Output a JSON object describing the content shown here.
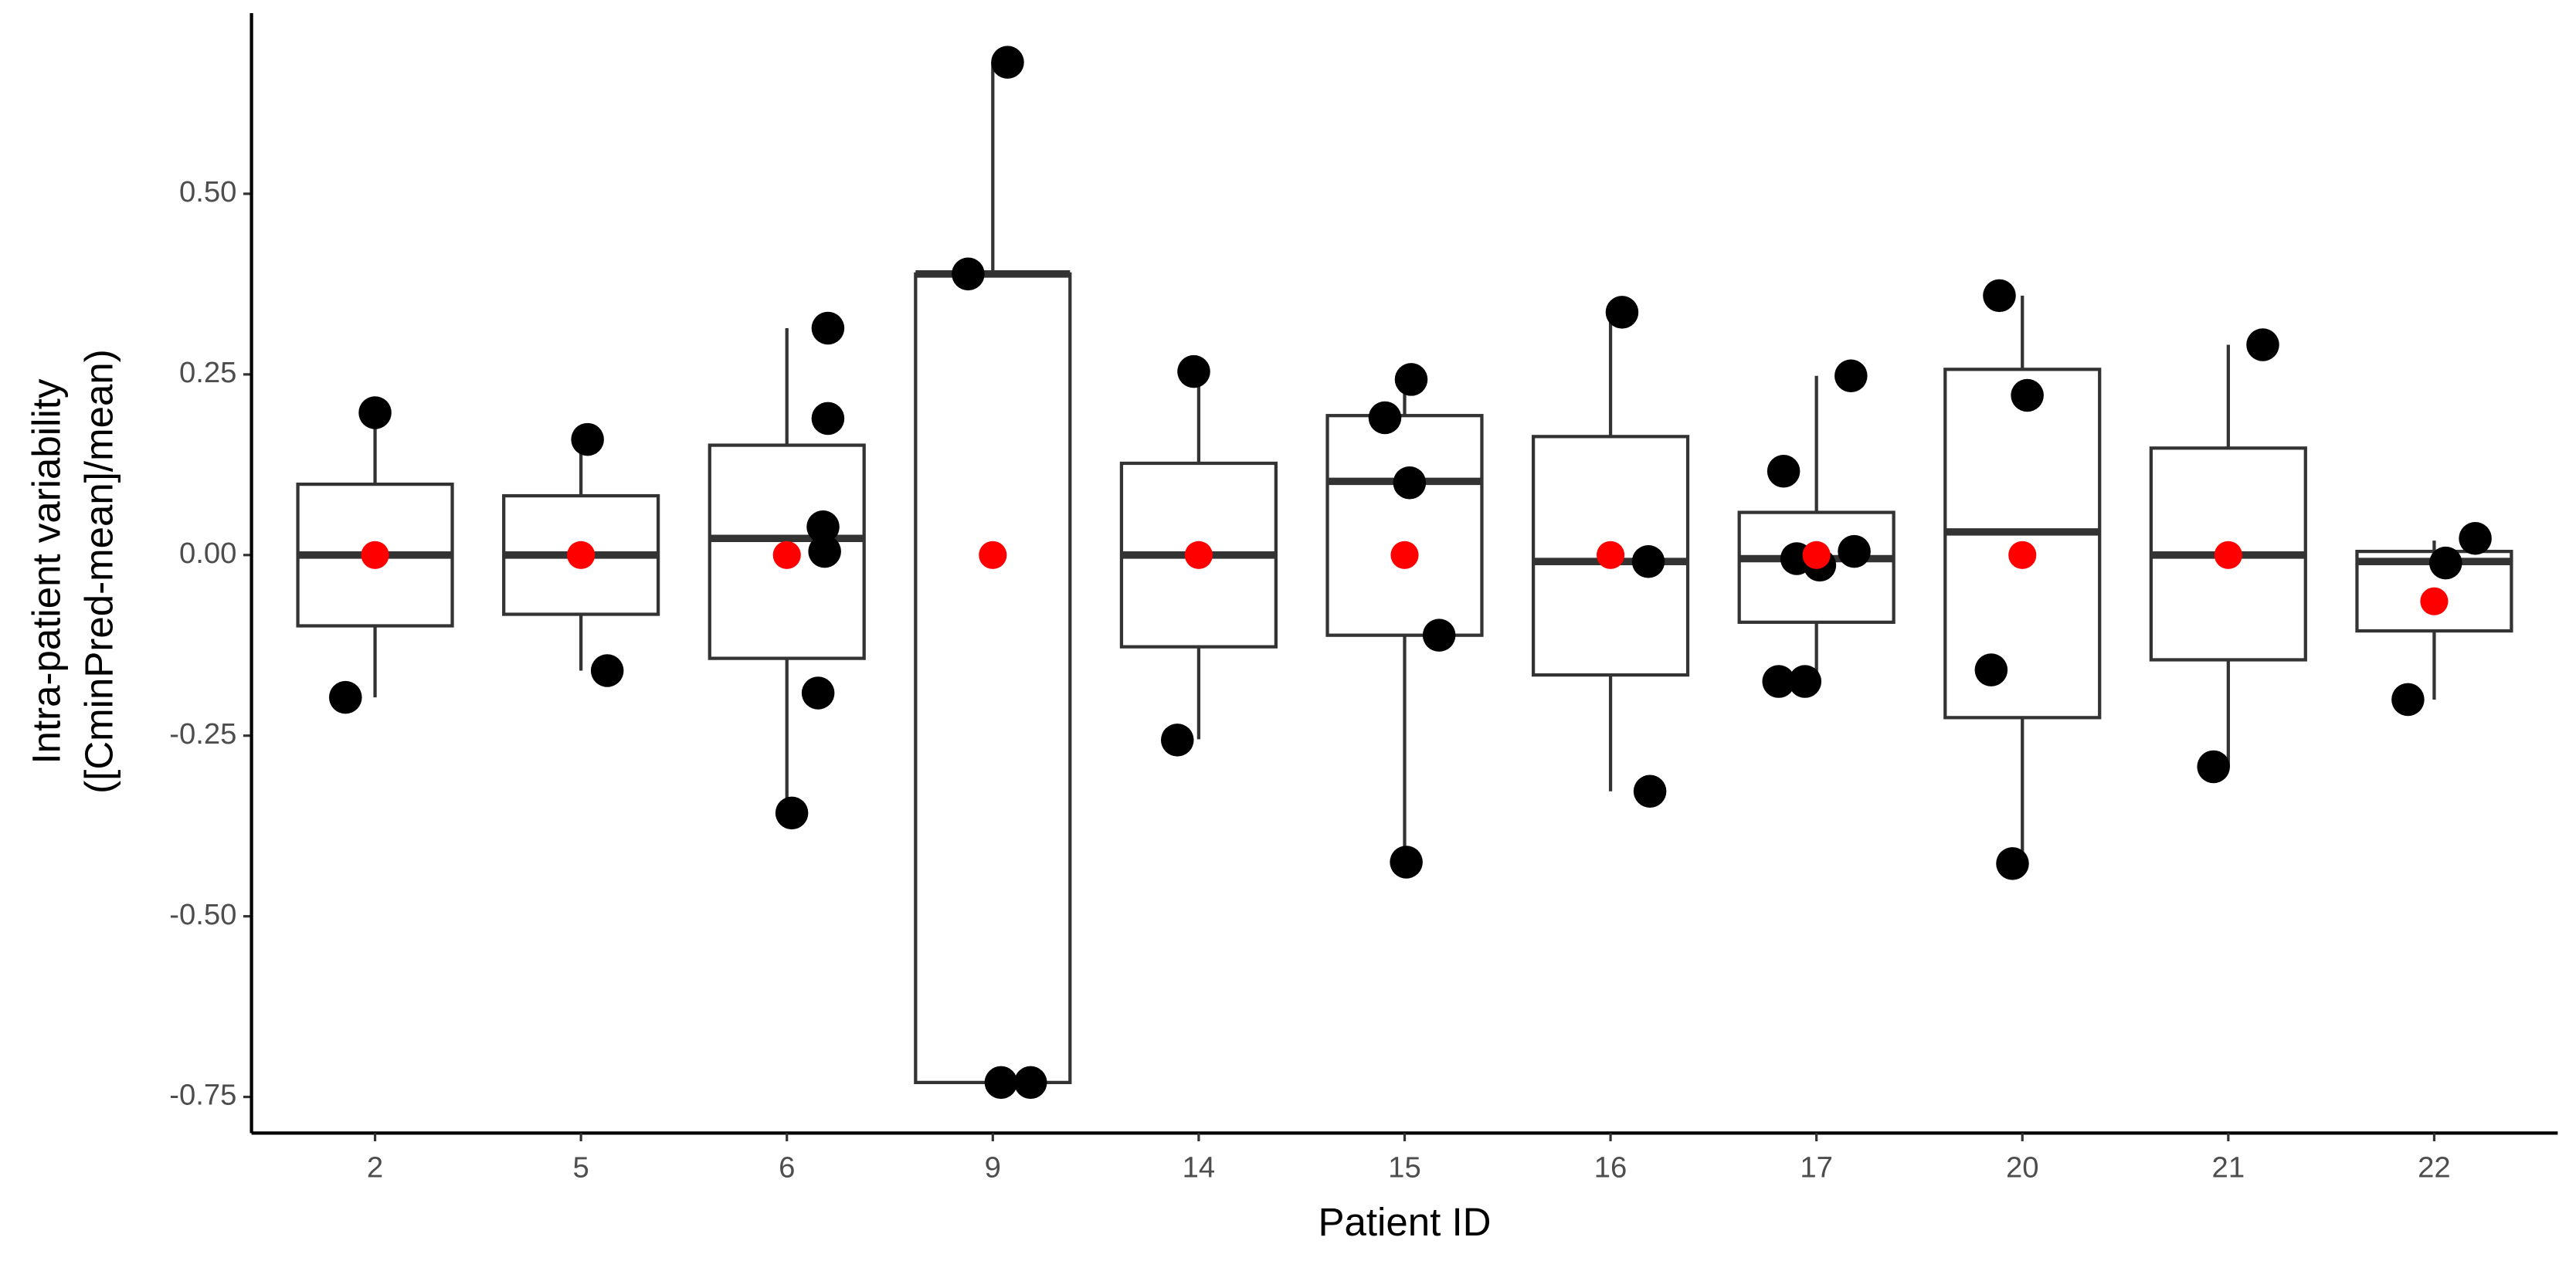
{
  "chart_data": {
    "type": "box",
    "x_label": "Patient ID",
    "y_label": [
      "Intra-patient variability",
      "([CminPred-mean]/mean)"
    ],
    "categories": [
      "2",
      "5",
      "6",
      "9",
      "14",
      "15",
      "16",
      "17",
      "20",
      "21",
      "22"
    ],
    "box_color": "#333333",
    "point_color": "#000000",
    "mean_color": "#ff0000",
    "ylim": [
      -0.8,
      0.75
    ],
    "yticks": [
      {
        "value": -0.75,
        "label": "-0.75"
      },
      {
        "value": -0.5,
        "label": "-0.50"
      },
      {
        "value": -0.25,
        "label": "-0.25"
      },
      {
        "value": 0,
        "label": "0.00"
      },
      {
        "value": 0.25,
        "label": "0.25"
      },
      {
        "value": 0.5,
        "label": "0.50"
      }
    ],
    "boxes": [
      {
        "whisker_low": -0.197,
        "q1": -0.098,
        "median": 0,
        "q3": 0.098,
        "whisker_high": 0.197,
        "mean": 0,
        "points": [
          0.197,
          -0.197
        ]
      },
      {
        "whisker_low": -0.16,
        "q1": -0.082,
        "median": 0,
        "q3": 0.082,
        "whisker_high": 0.16,
        "mean": 0,
        "points": [
          0.16,
          -0.16
        ]
      },
      {
        "whisker_low": -0.357,
        "q1": -0.143,
        "median": 0.023,
        "q3": 0.152,
        "whisker_high": 0.314,
        "mean": 0,
        "points": [
          0.314,
          0.189,
          0.039,
          0.005,
          -0.191,
          -0.357
        ]
      },
      {
        "whisker_low": -0.73,
        "q1": -0.73,
        "median": 0.389,
        "q3": 0.389,
        "whisker_high": 0.682,
        "mean": 0,
        "points": [
          0.682,
          0.389,
          -0.73,
          -0.73
        ]
      },
      {
        "whisker_low": -0.255,
        "q1": -0.127,
        "median": 0,
        "q3": 0.127,
        "whisker_high": 0.255,
        "mean": 0,
        "points": [
          0.254,
          -0.256
        ]
      },
      {
        "whisker_low": -0.425,
        "q1": -0.111,
        "median": 0.102,
        "q3": 0.193,
        "whisker_high": 0.243,
        "mean": 0,
        "points": [
          0.243,
          0.19,
          0.1,
          -0.111,
          -0.425
        ]
      },
      {
        "whisker_low": -0.327,
        "q1": -0.166,
        "median": -0.009,
        "q3": 0.164,
        "whisker_high": 0.336,
        "mean": 0,
        "points": [
          0.336,
          -0.009,
          -0.327
        ]
      },
      {
        "whisker_low": -0.175,
        "q1": -0.093,
        "median": -0.005,
        "q3": 0.059,
        "whisker_high": 0.248,
        "mean": 0,
        "points": [
          0.248,
          0.116,
          -0.005,
          -0.014,
          0.005,
          -0.175,
          -0.175
        ]
      },
      {
        "whisker_low": -0.427,
        "q1": -0.225,
        "median": 0.032,
        "q3": 0.257,
        "whisker_high": 0.359,
        "mean": 0,
        "points": [
          0.359,
          0.221,
          -0.159,
          -0.427
        ]
      },
      {
        "whisker_low": -0.293,
        "q1": -0.145,
        "median": 0,
        "q3": 0.148,
        "whisker_high": 0.291,
        "mean": 0,
        "points": [
          0.291,
          -0.293
        ]
      },
      {
        "whisker_low": -0.2,
        "q1": -0.105,
        "median": -0.009,
        "q3": 0.005,
        "whisker_high": 0.02,
        "mean": -0.064,
        "points": [
          0.023,
          -0.011,
          -0.2
        ]
      }
    ]
  }
}
